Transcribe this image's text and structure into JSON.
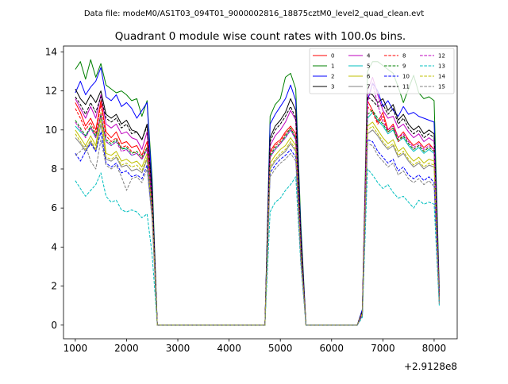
{
  "figure": {
    "suptitle": "Data file: modeM0/AS1T03_094T01_9000002816_18875cztM0_level2_quad_clean.evt"
  },
  "chart_data": {
    "type": "line",
    "title": "Quadrant 0 module wise count rates with 100.0s bins.",
    "xlabel": "",
    "ylabel": "",
    "x_offset_label": "+2.9128e8",
    "xlim": [
      770,
      8450
    ],
    "ylim": [
      -0.7,
      14.3
    ],
    "xticks": [
      1000,
      2000,
      3000,
      4000,
      5000,
      6000,
      7000,
      8000
    ],
    "yticks": [
      0,
      2,
      4,
      6,
      8,
      10,
      12,
      14
    ],
    "legend_position": "top-right",
    "x": [
      1000,
      1100,
      1200,
      1300,
      1400,
      1500,
      1600,
      1700,
      1800,
      1900,
      2000,
      2100,
      2200,
      2300,
      2400,
      2500,
      2600,
      2700,
      4600,
      4700,
      4800,
      4900,
      5000,
      5100,
      5200,
      5300,
      5400,
      5500,
      6500,
      6600,
      6700,
      6800,
      6900,
      7000,
      7100,
      7200,
      7300,
      7400,
      7500,
      7600,
      7700,
      7800,
      7900,
      8000,
      8100
    ],
    "series": [
      {
        "name": "0",
        "color": "#ff0000",
        "dash": "solid",
        "values": [
          11.4,
          10.9,
          10.2,
          10.6,
          10.0,
          11.5,
          9.9,
          9.6,
          9.9,
          9.3,
          9.4,
          9.1,
          9.2,
          8.7,
          9.4,
          6.3,
          0,
          0,
          0,
          0,
          8.9,
          9.3,
          9.5,
          9.9,
          10.2,
          9.8,
          4.0,
          0,
          0,
          0.6,
          11.5,
          11.0,
          10.4,
          10.9,
          10.0,
          10.3,
          9.6,
          9.9,
          9.5,
          9.2,
          9.4,
          9.1,
          9.3,
          9.0,
          1.4
        ]
      },
      {
        "name": "1",
        "color": "#008000",
        "dash": "solid",
        "values": [
          13.1,
          13.5,
          12.6,
          13.6,
          12.7,
          13.4,
          12.3,
          12.1,
          11.9,
          12.0,
          11.8,
          11.5,
          11.6,
          10.7,
          11.5,
          7.5,
          0,
          0,
          0,
          0,
          10.7,
          11.3,
          11.6,
          12.7,
          12.9,
          12.1,
          5.2,
          0,
          0,
          0.8,
          13.0,
          13.5,
          13.5,
          13.3,
          13.1,
          12.9,
          12.2,
          11.4,
          12.1,
          12.8,
          11.9,
          11.6,
          11.7,
          11.5,
          1.9
        ]
      },
      {
        "name": "2",
        "color": "#0000ff",
        "dash": "solid",
        "values": [
          11.9,
          12.5,
          11.8,
          12.2,
          12.5,
          13.2,
          11.7,
          11.5,
          11.8,
          11.2,
          11.4,
          11.1,
          10.6,
          11.0,
          11.4,
          7.0,
          0,
          0,
          0,
          0,
          10.3,
          10.8,
          11.2,
          11.6,
          12.3,
          11.5,
          4.8,
          0,
          0,
          0.8,
          11.5,
          12.4,
          12.0,
          11.2,
          11.5,
          11.0,
          10.7,
          11.2,
          10.8,
          10.9,
          10.7,
          10.6,
          10.5,
          10.4,
          1.7
        ]
      },
      {
        "name": "3",
        "color": "#000000",
        "dash": "solid",
        "values": [
          12.1,
          11.6,
          11.3,
          11.8,
          11.4,
          12.0,
          10.8,
          10.6,
          10.8,
          10.3,
          10.5,
          10.0,
          9.9,
          9.5,
          10.3,
          6.7,
          0,
          0,
          0,
          0,
          9.6,
          10.2,
          10.5,
          10.9,
          11.6,
          11.0,
          4.5,
          0,
          0,
          0.7,
          11.9,
          11.8,
          11.4,
          11.6,
          11.0,
          11.3,
          10.5,
          10.8,
          10.3,
          10.0,
          10.2,
          9.8,
          10.0,
          9.8,
          1.5
        ]
      },
      {
        "name": "4",
        "color": "#bf00bf",
        "dash": "solid",
        "values": [
          11.6,
          11.1,
          10.6,
          11.2,
          10.6,
          11.8,
          10.3,
          10.1,
          10.3,
          9.8,
          9.9,
          9.6,
          9.5,
          9.0,
          9.9,
          6.4,
          0,
          0,
          0,
          0,
          9.2,
          9.7,
          10.0,
          10.4,
          11.0,
          10.5,
          4.2,
          0,
          0,
          0.7,
          12.0,
          12.7,
          11.8,
          11.0,
          10.6,
          10.7,
          10.1,
          10.3,
          9.9,
          9.6,
          9.8,
          9.4,
          9.6,
          9.4,
          1.5
        ]
      },
      {
        "name": "5",
        "color": "#00bfbf",
        "dash": "solid",
        "values": [
          10.2,
          9.9,
          9.7,
          10.1,
          9.6,
          10.7,
          9.4,
          9.2,
          9.4,
          9.1,
          9.0,
          8.7,
          8.8,
          8.5,
          9.0,
          6.0,
          0,
          0,
          0,
          0,
          8.6,
          9.0,
          9.3,
          9.6,
          10.0,
          9.5,
          3.8,
          0,
          0,
          0.6,
          10.6,
          10.9,
          10.5,
          10.2,
          9.8,
          10.0,
          9.4,
          9.6,
          9.2,
          8.9,
          9.1,
          8.8,
          9.0,
          8.8,
          1.3
        ]
      },
      {
        "name": "6",
        "color": "#bfbf00",
        "dash": "solid",
        "values": [
          10.0,
          9.6,
          9.2,
          9.7,
          9.2,
          10.9,
          8.8,
          8.7,
          8.9,
          8.4,
          8.5,
          8.3,
          8.4,
          8.1,
          8.8,
          5.8,
          0,
          0,
          0,
          0,
          8.3,
          8.7,
          9.0,
          9.2,
          9.6,
          9.2,
          3.7,
          0,
          0,
          0.6,
          10.2,
          10.4,
          10.0,
          9.6,
          9.3,
          9.5,
          8.9,
          9.1,
          8.7,
          8.4,
          8.6,
          8.3,
          8.5,
          8.4,
          1.2
        ]
      },
      {
        "name": "7",
        "color": "#808080",
        "dash": "solid",
        "values": [
          9.6,
          9.3,
          8.9,
          9.4,
          8.9,
          10.3,
          8.5,
          8.4,
          8.6,
          8.1,
          8.2,
          7.9,
          8.0,
          7.8,
          8.5,
          5.6,
          0,
          0,
          0,
          0,
          8.0,
          8.4,
          8.7,
          8.9,
          9.3,
          8.9,
          3.5,
          0,
          0,
          0.6,
          9.8,
          10.0,
          9.7,
          9.3,
          9.0,
          9.2,
          8.6,
          8.8,
          8.4,
          8.1,
          8.3,
          8.0,
          8.2,
          8.1,
          1.2
        ]
      },
      {
        "name": "8",
        "color": "#ff0000",
        "dash": "dashed",
        "values": [
          11.1,
          10.6,
          10.0,
          10.4,
          9.8,
          11.3,
          9.7,
          9.4,
          9.6,
          9.1,
          9.2,
          8.9,
          8.8,
          8.5,
          9.1,
          6.2,
          0,
          0,
          0,
          0,
          8.8,
          9.2,
          9.4,
          9.8,
          10.1,
          9.6,
          3.9,
          0,
          0,
          0.6,
          11.2,
          10.9,
          10.3,
          10.7,
          9.9,
          10.1,
          9.4,
          9.7,
          9.3,
          9.0,
          9.2,
          8.9,
          9.1,
          8.9,
          1.4
        ]
      },
      {
        "name": "9",
        "color": "#008000",
        "dash": "dashed",
        "values": [
          10.5,
          10.1,
          9.7,
          10.2,
          9.7,
          10.8,
          9.5,
          9.3,
          9.5,
          9.0,
          9.1,
          8.8,
          8.9,
          8.6,
          9.1,
          6.1,
          0,
          0,
          0,
          0,
          8.7,
          9.1,
          9.3,
          9.7,
          10.1,
          9.6,
          3.9,
          0,
          0,
          0.6,
          10.8,
          11.0,
          10.6,
          10.3,
          9.9,
          10.1,
          9.5,
          9.7,
          9.3,
          9.0,
          9.2,
          8.9,
          9.1,
          8.9,
          1.3
        ]
      },
      {
        "name": "10",
        "color": "#0000ff",
        "dash": "dashed",
        "values": [
          8.8,
          8.4,
          8.9,
          9.3,
          8.9,
          9.9,
          8.3,
          8.1,
          8.3,
          7.8,
          7.9,
          7.6,
          7.7,
          7.5,
          8.2,
          5.5,
          0,
          0,
          0,
          0,
          7.8,
          8.2,
          8.5,
          8.7,
          9.0,
          8.6,
          3.4,
          0,
          0,
          0.5,
          9.5,
          9.4,
          8.9,
          8.6,
          8.3,
          8.5,
          7.9,
          8.1,
          7.7,
          7.5,
          7.7,
          7.4,
          7.6,
          7.3,
          1.1
        ]
      },
      {
        "name": "11",
        "color": "#000000",
        "dash": "dashed",
        "values": [
          11.7,
          11.3,
          10.8,
          11.4,
          10.9,
          11.7,
          10.6,
          10.4,
          10.6,
          10.1,
          10.3,
          9.8,
          9.9,
          9.5,
          10.2,
          6.6,
          0,
          0,
          0,
          0,
          9.4,
          10.0,
          10.3,
          10.7,
          11.2,
          10.6,
          4.3,
          0,
          0,
          0.7,
          11.7,
          11.5,
          11.2,
          11.3,
          10.8,
          11.1,
          10.3,
          10.6,
          10.1,
          9.8,
          10.0,
          9.6,
          9.8,
          9.6,
          1.5
        ]
      },
      {
        "name": "12",
        "color": "#bf00bf",
        "dash": "dashed",
        "values": [
          10.4,
          10.0,
          9.6,
          10.1,
          9.6,
          10.8,
          9.4,
          9.2,
          9.4,
          8.9,
          9.0,
          8.7,
          8.8,
          8.5,
          9.0,
          6.0,
          0,
          0,
          0,
          0,
          8.6,
          9.0,
          9.3,
          9.6,
          10.0,
          9.5,
          3.8,
          0,
          0,
          0.6,
          11.4,
          12.4,
          11.3,
          10.4,
          10.0,
          10.2,
          9.6,
          9.8,
          9.4,
          9.1,
          9.3,
          9.0,
          9.2,
          9.0,
          1.3
        ]
      },
      {
        "name": "13",
        "color": "#00bfbf",
        "dash": "dashed",
        "values": [
          7.4,
          7.0,
          6.6,
          6.9,
          7.2,
          7.8,
          6.6,
          6.3,
          6.4,
          5.9,
          5.8,
          5.9,
          5.8,
          5.5,
          5.7,
          3.6,
          0,
          0,
          0,
          0,
          5.8,
          6.3,
          6.5,
          6.9,
          7.2,
          7.6,
          3.1,
          0,
          0,
          0.4,
          8.0,
          7.7,
          7.3,
          7.0,
          7.2,
          6.8,
          6.5,
          6.6,
          6.3,
          6.0,
          6.4,
          6.2,
          6.3,
          6.2,
          1.0
        ]
      },
      {
        "name": "14",
        "color": "#bfbf00",
        "dash": "dashed",
        "values": [
          9.8,
          9.4,
          9.0,
          9.5,
          9.0,
          10.6,
          8.6,
          8.5,
          8.7,
          8.2,
          8.3,
          8.1,
          8.2,
          7.9,
          8.6,
          5.7,
          0,
          0,
          0,
          0,
          8.1,
          8.5,
          8.8,
          9.0,
          9.4,
          9.0,
          3.6,
          0,
          0,
          0.6,
          10.0,
          10.2,
          9.8,
          9.4,
          9.1,
          9.3,
          8.7,
          8.9,
          8.5,
          8.2,
          8.4,
          8.1,
          8.3,
          8.2,
          1.2
        ]
      },
      {
        "name": "15",
        "color": "#808080",
        "dash": "dashed",
        "values": [
          8.7,
          8.9,
          9.2,
          8.4,
          8.0,
          9.5,
          8.2,
          8.0,
          8.2,
          7.6,
          6.9,
          7.5,
          7.6,
          7.3,
          8.0,
          5.4,
          0,
          0,
          0,
          0,
          7.6,
          8.0,
          8.3,
          8.5,
          8.8,
          8.4,
          3.3,
          0,
          0,
          0.5,
          9.3,
          9.2,
          8.7,
          8.4,
          8.1,
          8.3,
          7.7,
          7.9,
          7.5,
          7.3,
          7.5,
          7.2,
          7.4,
          7.1,
          1.1
        ]
      }
    ]
  }
}
